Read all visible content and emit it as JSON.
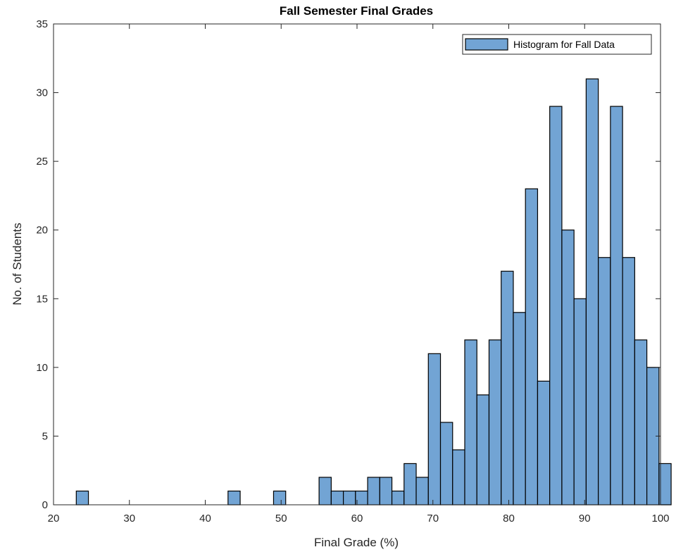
{
  "chart_data": {
    "type": "bar",
    "title": "Fall Semester Final Grades",
    "xlabel": "Final Grade (%)",
    "ylabel": "No. of Students",
    "xlim": [
      20,
      100
    ],
    "ylim": [
      0,
      35
    ],
    "xticks": [
      20,
      30,
      40,
      50,
      60,
      70,
      80,
      90,
      100
    ],
    "yticks": [
      0,
      5,
      10,
      15,
      20,
      25,
      30,
      35
    ],
    "bin_width": 1.6,
    "grid": false,
    "legend_position": "top-right",
    "bar_color": "#72a4d4",
    "edge_color": "#000000",
    "series": [
      {
        "name": "Histogram for Fall Data",
        "bins": [
          {
            "x0": 23.0,
            "x1": 24.6,
            "count": 1
          },
          {
            "x0": 43.0,
            "x1": 44.6,
            "count": 1
          },
          {
            "x0": 49.0,
            "x1": 50.6,
            "count": 1
          },
          {
            "x0": 55.0,
            "x1": 56.6,
            "count": 2
          },
          {
            "x0": 56.6,
            "x1": 58.2,
            "count": 1
          },
          {
            "x0": 58.2,
            "x1": 59.8,
            "count": 1
          },
          {
            "x0": 59.8,
            "x1": 61.4,
            "count": 1
          },
          {
            "x0": 61.4,
            "x1": 63.0,
            "count": 2
          },
          {
            "x0": 63.0,
            "x1": 64.6,
            "count": 2
          },
          {
            "x0": 64.6,
            "x1": 66.2,
            "count": 1
          },
          {
            "x0": 66.2,
            "x1": 67.8,
            "count": 3
          },
          {
            "x0": 67.8,
            "x1": 69.4,
            "count": 2
          },
          {
            "x0": 69.4,
            "x1": 71.0,
            "count": 11
          },
          {
            "x0": 71.0,
            "x1": 72.6,
            "count": 6
          },
          {
            "x0": 72.6,
            "x1": 74.2,
            "count": 4
          },
          {
            "x0": 74.2,
            "x1": 75.8,
            "count": 12
          },
          {
            "x0": 75.8,
            "x1": 77.4,
            "count": 8
          },
          {
            "x0": 77.4,
            "x1": 79.0,
            "count": 12
          },
          {
            "x0": 79.0,
            "x1": 80.6,
            "count": 17
          },
          {
            "x0": 80.6,
            "x1": 82.2,
            "count": 14
          },
          {
            "x0": 82.2,
            "x1": 83.8,
            "count": 23
          },
          {
            "x0": 83.8,
            "x1": 85.4,
            "count": 9
          },
          {
            "x0": 85.4,
            "x1": 87.0,
            "count": 29
          },
          {
            "x0": 87.0,
            "x1": 88.6,
            "count": 20
          },
          {
            "x0": 88.6,
            "x1": 90.2,
            "count": 15
          },
          {
            "x0": 90.2,
            "x1": 91.8,
            "count": 31
          },
          {
            "x0": 91.8,
            "x1": 93.4,
            "count": 18
          },
          {
            "x0": 93.4,
            "x1": 95.0,
            "count": 29
          },
          {
            "x0": 95.0,
            "x1": 96.6,
            "count": 18
          },
          {
            "x0": 96.6,
            "x1": 98.2,
            "count": 12
          },
          {
            "x0": 98.2,
            "x1": 99.8,
            "count": 10
          },
          {
            "x0": 99.8,
            "x1": 101.4,
            "count": 3
          }
        ]
      }
    ]
  }
}
